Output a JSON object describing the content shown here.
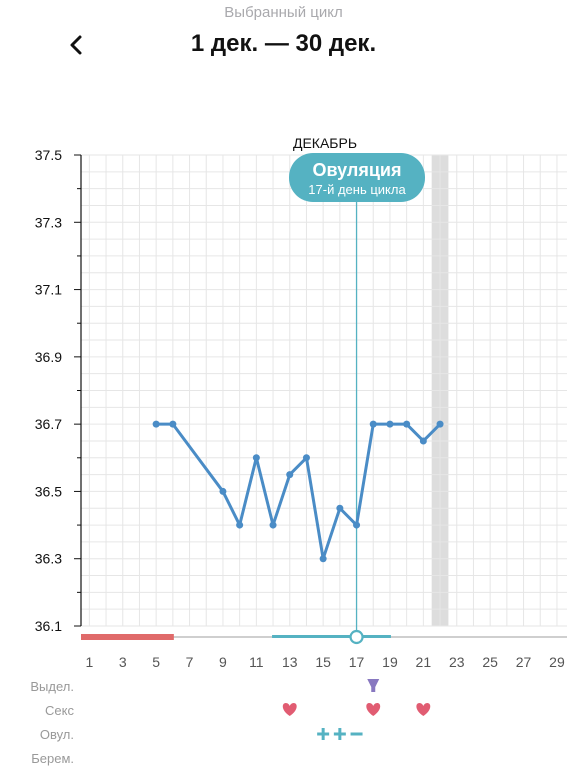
{
  "header": {
    "subtitle": "Выбранный цикл",
    "title": "1 дек. — 30 дек.",
    "back_icon": "chevron-left-icon"
  },
  "colors": {
    "line": "#4a8cc6",
    "ovulation": "#55b2c2",
    "period": "#e06a6a",
    "heart": "#e15c72",
    "discharge": "#8878c0",
    "highlight_band": "#dddddd",
    "grid": "#e6e6e6"
  },
  "chart_data": {
    "type": "line",
    "month_label": "ДЕКАБРЬ",
    "x_tick_labels": [
      "1",
      "3",
      "5",
      "7",
      "9",
      "11",
      "13",
      "15",
      "17",
      "19",
      "21",
      "23",
      "25",
      "27",
      "29"
    ],
    "y_tick_labels": [
      "37.5",
      "37.3",
      "37.1",
      "36.9",
      "36.7",
      "36.5",
      "36.3",
      "36.1"
    ],
    "ylim": [
      36.1,
      37.5
    ],
    "xlim": [
      0.5,
      30.5
    ],
    "grid": true,
    "series": [
      {
        "values": [
          {
            "x": 5,
            "y": 36.7
          },
          {
            "x": 6,
            "y": 36.7
          },
          {
            "x": 9,
            "y": 36.5
          },
          {
            "x": 10,
            "y": 36.4
          },
          {
            "x": 11,
            "y": 36.6
          },
          {
            "x": 12,
            "y": 36.4
          },
          {
            "x": 13,
            "y": 36.55
          },
          {
            "x": 14,
            "y": 36.6
          },
          {
            "x": 15,
            "y": 36.3
          },
          {
            "x": 16,
            "y": 36.45
          },
          {
            "x": 17,
            "y": 36.4
          },
          {
            "x": 18,
            "y": 36.7
          },
          {
            "x": 19,
            "y": 36.7
          },
          {
            "x": 20,
            "y": 36.7
          },
          {
            "x": 21,
            "y": 36.65
          },
          {
            "x": 22,
            "y": 36.7
          }
        ]
      }
    ],
    "ovulation": {
      "day": 17,
      "label": "Овуляция",
      "sublabel": "17-й день цикла"
    },
    "highlight_day": 22,
    "period_days": [
      1,
      6
    ],
    "fertile_window": [
      12,
      19
    ],
    "rows": [
      {
        "label": "Выдел.",
        "markers": [
          {
            "day": 18,
            "icon": "drop-icon"
          }
        ]
      },
      {
        "label": "Секс",
        "markers": [
          {
            "day": 13,
            "icon": "heart-icon"
          },
          {
            "day": 18,
            "icon": "heart-icon"
          },
          {
            "day": 21,
            "icon": "heart-icon"
          }
        ]
      },
      {
        "label": "Овул.",
        "markers": [
          {
            "day": 15,
            "icon": "plus-icon"
          },
          {
            "day": 16,
            "icon": "plus-icon"
          },
          {
            "day": 17,
            "icon": "minus-icon"
          }
        ]
      },
      {
        "label": "Берем.",
        "markers": []
      }
    ]
  }
}
